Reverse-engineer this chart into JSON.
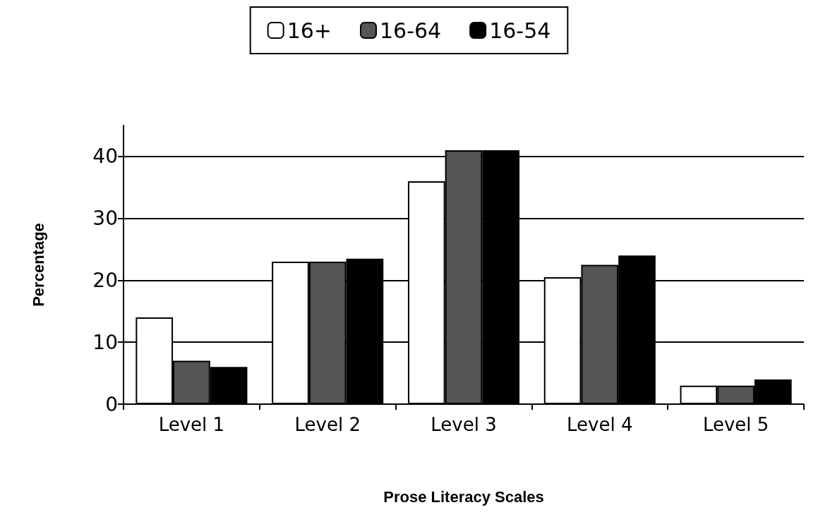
{
  "chart_data": {
    "type": "bar",
    "xlabel": "Prose Literacy Scales",
    "ylabel": "Percentage",
    "categories": [
      "Level 1",
      "Level 2",
      "Level 3",
      "Level 4",
      "Level 5"
    ],
    "series": [
      {
        "name": "16+",
        "color": "#ffffff",
        "values": [
          14,
          23,
          36,
          20.5,
          3
        ]
      },
      {
        "name": "16-64",
        "color": "#555555",
        "values": [
          7,
          23,
          41,
          22.5,
          3
        ]
      },
      {
        "name": "16-54",
        "color": "#000000",
        "values": [
          6,
          23.5,
          41,
          24,
          4
        ]
      }
    ],
    "ylim": [
      0,
      45
    ],
    "yticks": [
      0,
      10,
      20,
      30,
      40
    ],
    "grid": "y",
    "legend": "top"
  }
}
